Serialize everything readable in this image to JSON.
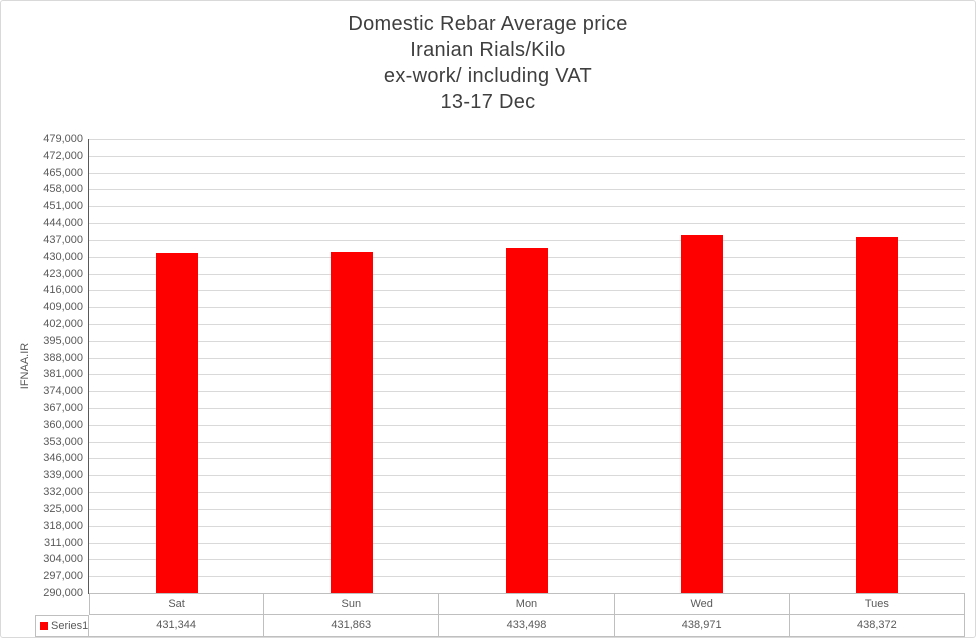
{
  "chart_data": {
    "type": "bar",
    "title_lines": [
      "Domestic Rebar Average price",
      "Iranian Rials/Kilo",
      "ex-work/ including VAT",
      "13-17 Dec"
    ],
    "categories": [
      "Sat",
      "Sun",
      "Mon",
      "Wed",
      "Tues"
    ],
    "series": [
      {
        "name": "Series1",
        "color": "#ff0000",
        "values": [
          431344,
          431863,
          433498,
          438971,
          438372
        ]
      }
    ],
    "xlabel": "",
    "ylabel": "IFNAA.IR",
    "y_axis": {
      "min": 290000,
      "max": 479000,
      "step": 7000
    },
    "y_tick_labels": [
      "479,000",
      "472,000",
      "465,000",
      "458,000",
      "451,000",
      "444,000",
      "437,000",
      "430,000",
      "423,000",
      "416,000",
      "409,000",
      "402,000",
      "395,000",
      "388,000",
      "381,000",
      "374,000",
      "367,000",
      "360,000",
      "353,000",
      "346,000",
      "339,000",
      "332,000",
      "325,000",
      "318,000",
      "311,000",
      "304,000",
      "297,000",
      "290,000"
    ],
    "data_table_values": [
      "431,344",
      "431,863",
      "433,498",
      "438,971",
      "438,372"
    ],
    "grid": true,
    "legend_position": "data-table",
    "colors": {
      "bar": "#ff0000",
      "gridline": "#d9d9d9",
      "axis_line": "#595959",
      "table_border": "#bfbfbf",
      "title_text": "#3f3f3f",
      "tick_text": "#595959"
    }
  }
}
